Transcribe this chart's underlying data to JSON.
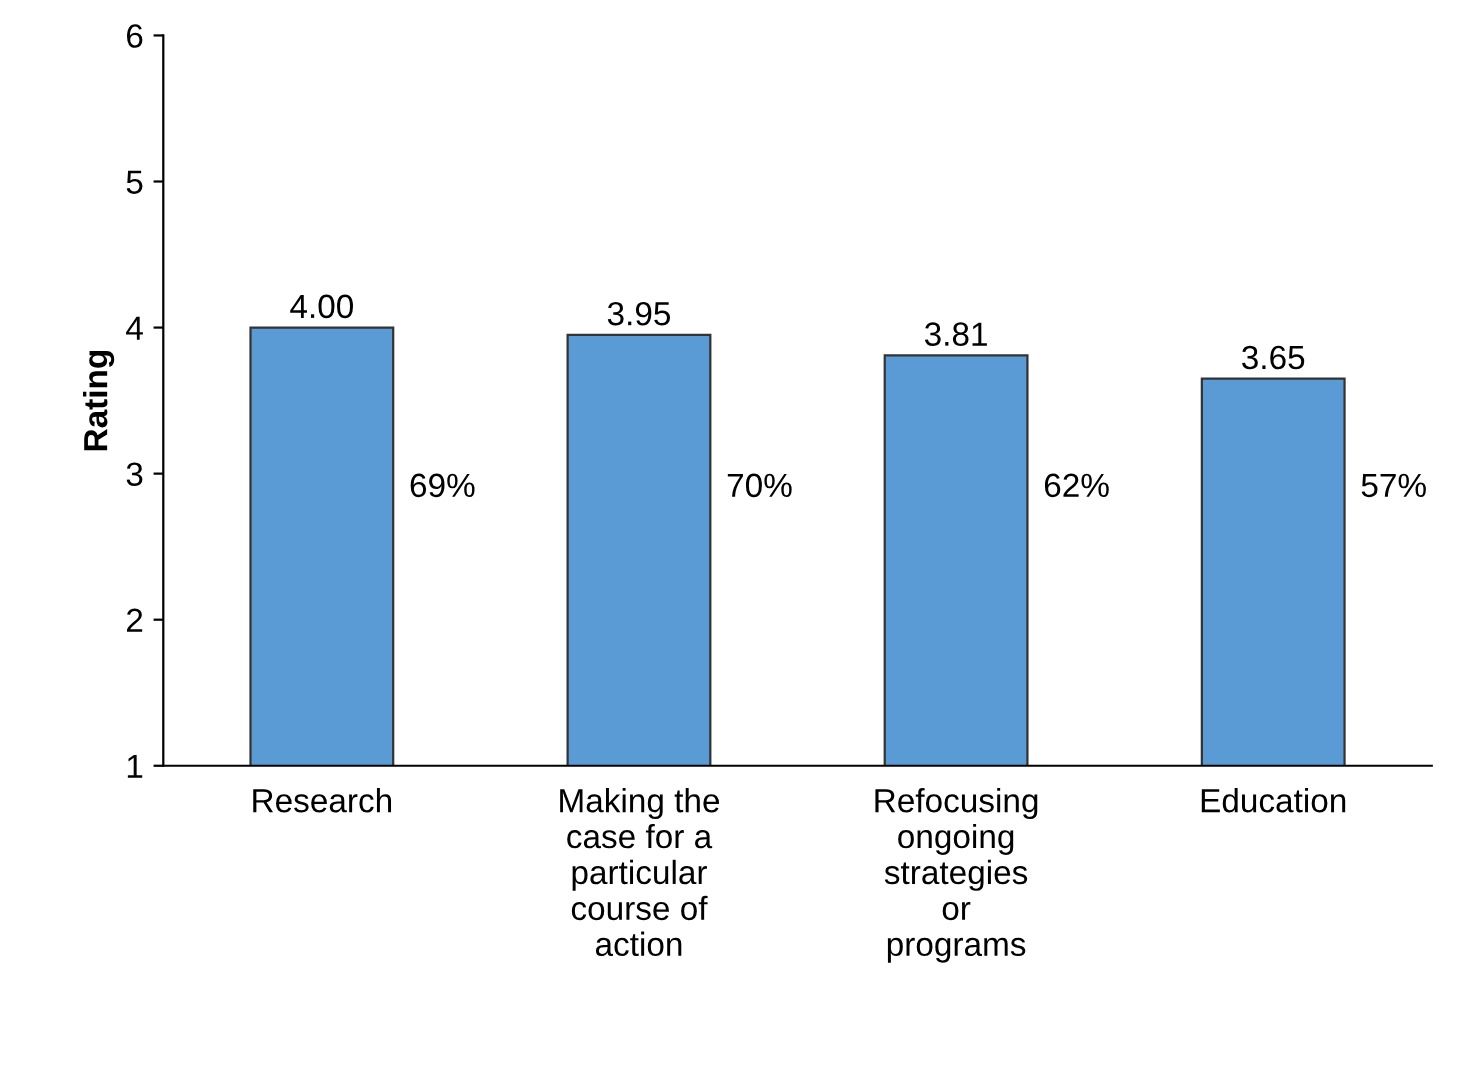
{
  "chart_data": {
    "type": "bar",
    "ylabel": "Rating",
    "categories": [
      "Research",
      "Making the\ncase for a\nparticular\ncourse of\naction",
      "Refocusing\nongoing\nstrategies\nor\nprograms",
      "Education"
    ],
    "values": [
      4.0,
      3.95,
      3.81,
      3.65
    ],
    "color": "#5b9bd5",
    "value_labels": [
      "4.00",
      "3.95",
      "3.81",
      "3.65"
    ],
    "ylim": [
      1,
      6
    ],
    "yticks": [
      1,
      2,
      3,
      4,
      5,
      6
    ],
    "grid": false,
    "legend": false,
    "annotations": [
      "69%",
      "70%",
      "62%",
      "57%"
    ]
  }
}
